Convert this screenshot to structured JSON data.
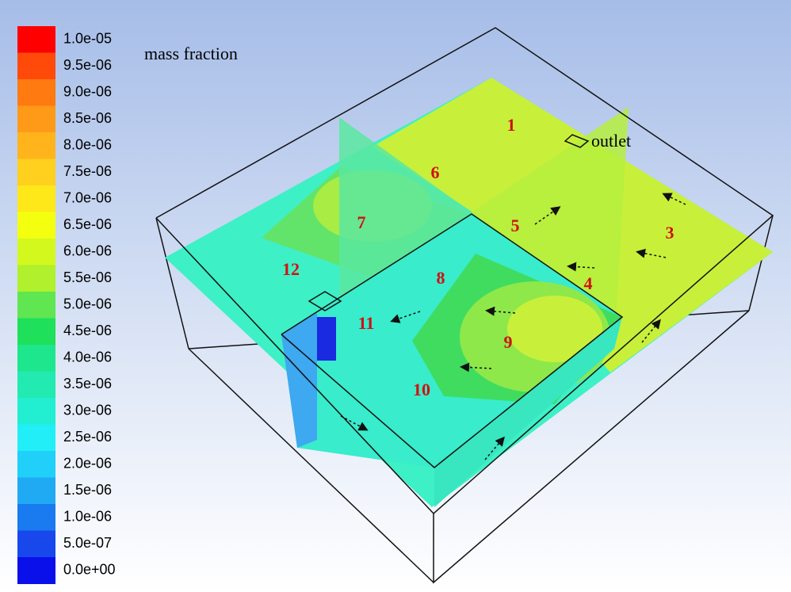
{
  "colorbar": {
    "title": "mass fraction",
    "labels": [
      "1.0e-05",
      "9.5e-06",
      "9.0e-06",
      "8.5e-06",
      "8.0e-06",
      "7.5e-06",
      "7.0e-06",
      "6.5e-06",
      "6.0e-06",
      "5.5e-06",
      "5.0e-06",
      "4.5e-06",
      "4.0e-06",
      "3.5e-06",
      "3.0e-06",
      "2.5e-06",
      "2.0e-06",
      "1.5e-06",
      "1.0e-06",
      "5.0e-07",
      "0.0e+00"
    ],
    "colors": [
      "#ff0000",
      "#ff4a0a",
      "#ff7a10",
      "#ff9a18",
      "#ffb41c",
      "#ffd01e",
      "#ffe81a",
      "#f4ff10",
      "#d2f81e",
      "#b0f02c",
      "#60e650",
      "#1ee05a",
      "#1ee68c",
      "#22eab0",
      "#22eed2",
      "#22eef8",
      "#20d0f8",
      "#20aaf4",
      "#1a7af0",
      "#1848ec",
      "#0a10ea"
    ]
  },
  "outlet_label": "outlet",
  "regions": [
    "1",
    "3",
    "4",
    "5",
    "6",
    "7",
    "8",
    "9",
    "10",
    "11",
    "12"
  ]
}
